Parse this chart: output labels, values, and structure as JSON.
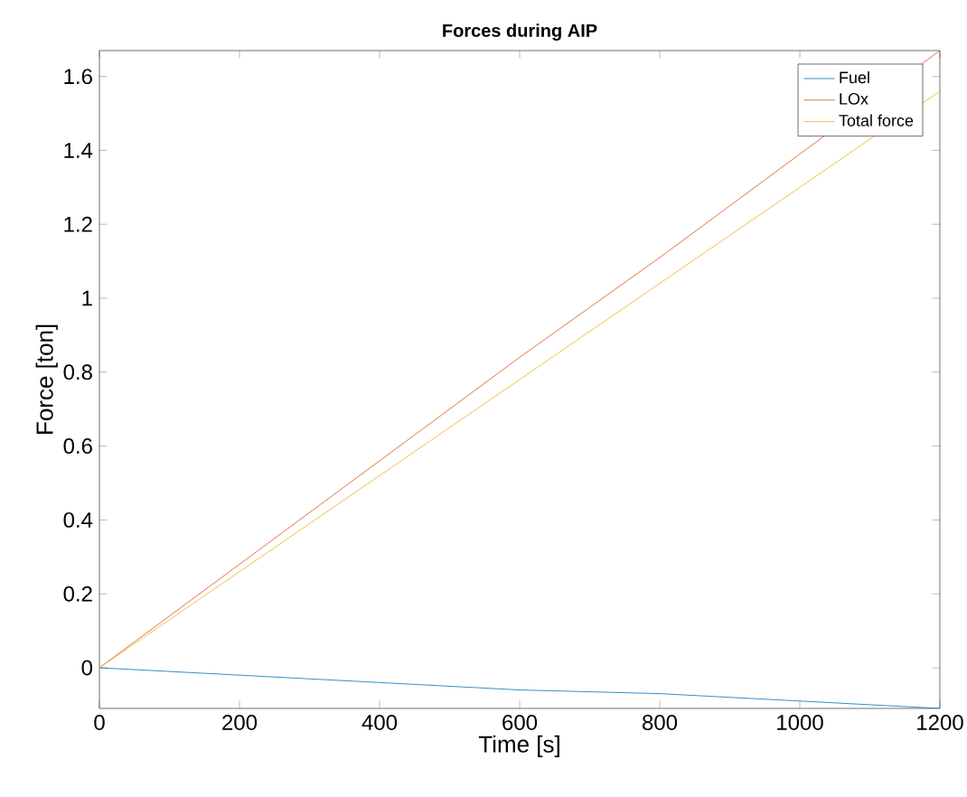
{
  "chart_data": {
    "type": "line",
    "title": "Forces during AIP",
    "xlabel": "Time [s]",
    "ylabel": "Force [ton]",
    "xlim": [
      0,
      1200
    ],
    "ylim": [
      -0.11,
      1.67
    ],
    "xticks": [
      0,
      200,
      400,
      600,
      800,
      1000,
      1200
    ],
    "yticks": [
      0,
      0.2,
      0.4,
      0.6,
      0.8,
      1,
      1.2,
      1.4,
      1.6
    ],
    "legend": "top right",
    "grid": false,
    "series": [
      {
        "name": "Fuel",
        "color": "#0072bd",
        "x": [
          0,
          200,
          400,
          600,
          800,
          1000,
          1200
        ],
        "values": [
          0,
          -0.02,
          -0.04,
          -0.06,
          -0.07,
          -0.09,
          -0.11
        ]
      },
      {
        "name": "LOx",
        "color": "#d95319",
        "x": [
          0,
          200,
          400,
          600,
          800,
          1000,
          1200
        ],
        "values": [
          0,
          0.28,
          0.56,
          0.84,
          1.11,
          1.39,
          1.67
        ]
      },
      {
        "name": "Total force",
        "color": "#edb120",
        "x": [
          0,
          200,
          400,
          600,
          800,
          1000,
          1200
        ],
        "values": [
          0,
          0.26,
          0.52,
          0.78,
          1.04,
          1.3,
          1.56
        ]
      }
    ]
  }
}
